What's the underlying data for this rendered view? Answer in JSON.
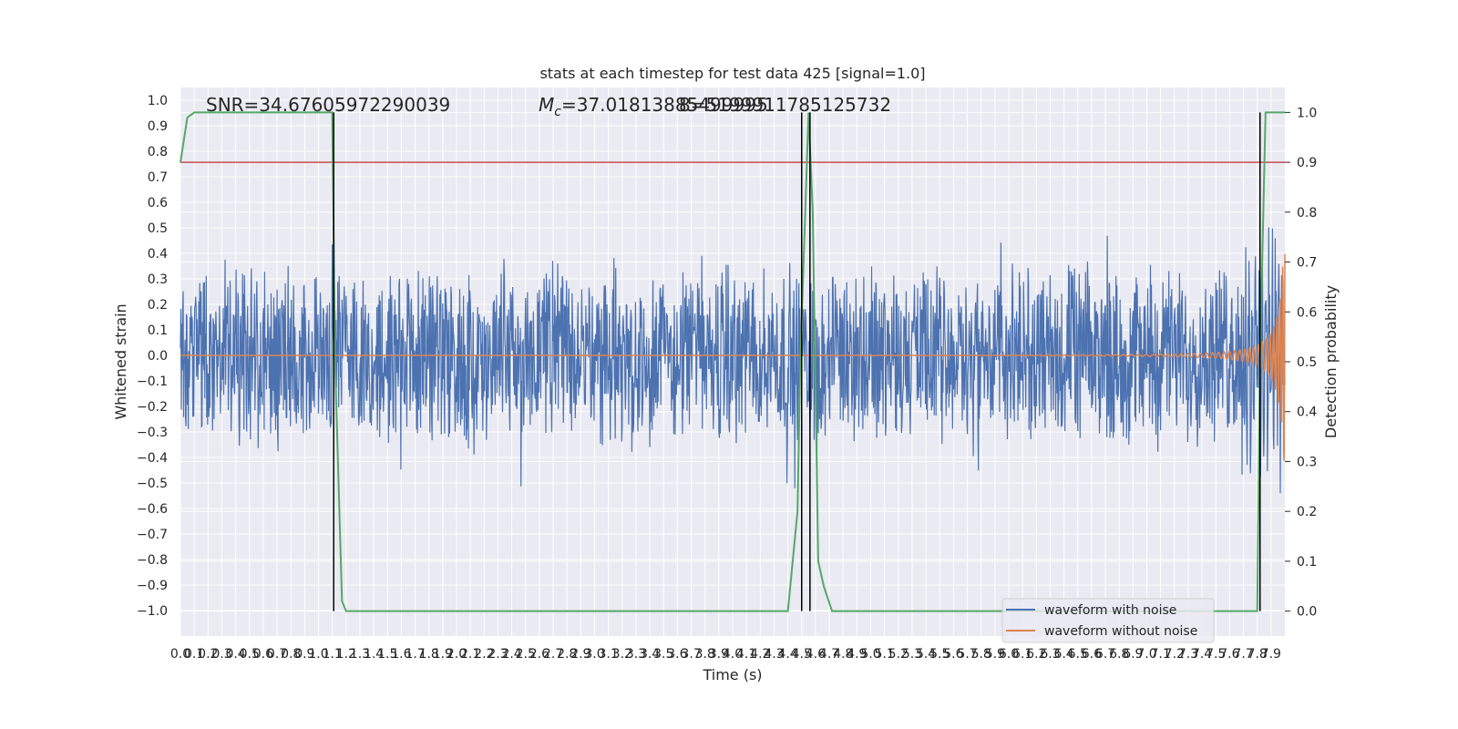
{
  "chart_data": {
    "type": "line",
    "title": "stats at each timestep for test data 425 [signal=1.0]",
    "xlabel": "Time (s)",
    "ylabel_left": "Whitened strain",
    "ylabel_right": "Detection probability",
    "xlim": [
      0.0,
      8.0
    ],
    "ylim_left": [
      -1.1,
      1.05
    ],
    "ylim_right": [
      -0.05,
      1.05
    ],
    "x_ticks": [
      "0.0",
      "0.1",
      "0.2",
      "0.3",
      "0.4",
      "0.5",
      "0.6",
      "0.7",
      "0.8",
      "0.9",
      "1.0",
      "1.1",
      "1.2",
      "1.3",
      "1.4",
      "1.5",
      "1.6",
      "1.7",
      "1.8",
      "1.9",
      "2.0",
      "2.1",
      "2.2",
      "2.3",
      "2.4",
      "2.5",
      "2.6",
      "2.7",
      "2.8",
      "2.9",
      "3.0",
      "3.1",
      "3.2",
      "3.3",
      "3.4",
      "3.5",
      "3.6",
      "3.7",
      "3.8",
      "3.9",
      "4.0",
      "4.1",
      "4.2",
      "4.3",
      "4.4",
      "4.5",
      "4.6",
      "4.7",
      "4.8",
      "4.9",
      "5.0",
      "5.1",
      "5.2",
      "5.3",
      "5.4",
      "5.5",
      "5.6",
      "5.7",
      "5.8",
      "5.9",
      "6.0",
      "6.1",
      "6.2",
      "6.3",
      "6.4",
      "6.5",
      "6.6",
      "6.7",
      "6.8",
      "6.9",
      "7.0",
      "7.1",
      "7.2",
      "7.3",
      "7.4",
      "7.5",
      "7.6",
      "7.7",
      "7.8",
      "7.9"
    ],
    "y_ticks_left": [
      "1.0",
      "0.9",
      "0.8",
      "0.7",
      "0.6",
      "0.5",
      "0.4",
      "0.3",
      "0.2",
      "0.1",
      "0.0",
      "−0.1",
      "−0.2",
      "−0.3",
      "−0.4",
      "−0.5",
      "−0.6",
      "−0.7",
      "−0.8",
      "−0.9",
      "−1.0"
    ],
    "y_ticks_right": [
      "1.0",
      "0.9",
      "0.8",
      "0.7",
      "0.6",
      "0.5",
      "0.4",
      "0.3",
      "0.2",
      "0.1",
      "0.0"
    ],
    "annotations": {
      "snr": "SNR=34.67605972290039",
      "mc_symbol": "M",
      "mc_sub": "c",
      "mc_value": "=37.01813885499995",
      "overlap": "8=5199911785125732"
    },
    "legend": {
      "placement": "lower-right",
      "entries": [
        "waveform with noise",
        "waveform without noise"
      ]
    },
    "grid": true,
    "threshold": {
      "right_axis_value": 0.9,
      "color": "#c44e52"
    },
    "detection_probability": {
      "color": "#55a868",
      "x": [
        0.0,
        0.05,
        0.1,
        0.2,
        1.1,
        1.12,
        1.17,
        1.2,
        4.4,
        4.47,
        4.49,
        4.55,
        4.58,
        4.62,
        4.66,
        4.72,
        7.75,
        7.8,
        7.82,
        7.86,
        7.9,
        7.95,
        8.0
      ],
      "y": [
        0.9,
        0.99,
        1.0,
        1.0,
        1.0,
        0.5,
        0.02,
        0.0,
        0.0,
        0.2,
        0.5,
        1.0,
        0.8,
        0.1,
        0.05,
        0.0,
        0.0,
        0.0,
        0.5,
        1.0,
        1.0,
        1.0,
        1.0
      ]
    },
    "event_markers": {
      "color": "#000000",
      "x": [
        1.11,
        4.5,
        4.56,
        7.82
      ],
      "top_right_axis": 1.0,
      "bottom_right_axis": 0.0
    },
    "series": [
      {
        "name": "waveform with noise",
        "color": "#4c72b0",
        "description": "whitened noisy strain, amplitude about ±0.35 with peaks to ±0.5"
      },
      {
        "name": "waveform without noise",
        "color": "#dd8452",
        "description": "chirp signal, amplitude growing from ~0 near 4.5 s to ~0.8 at 8.0 s"
      }
    ],
    "colors": {
      "background": "#eaeaf2",
      "grid": "#ffffff",
      "text": "#262626"
    }
  }
}
